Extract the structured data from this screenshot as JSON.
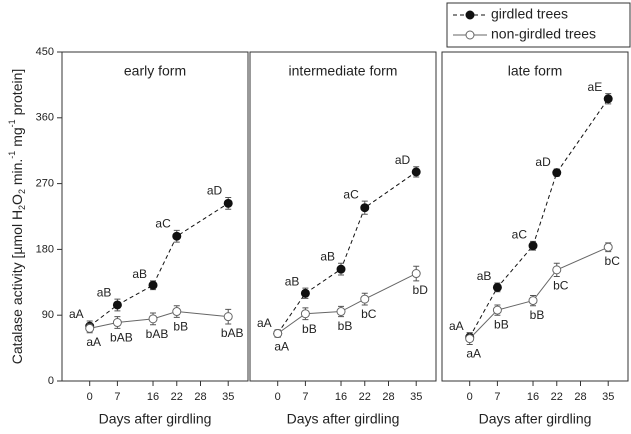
{
  "chart_data": [
    {
      "type": "line",
      "title": "early form",
      "xlabel": "Days after girdling",
      "ylabel": [
        "Catalase activity [µmol H",
        "2",
        "O",
        "2",
        " min.",
        "-1",
        " mg",
        "-1",
        " protein]"
      ],
      "x": [
        0,
        7,
        16,
        22,
        35
      ],
      "xlim": [
        -7,
        40
      ],
      "xticks": [
        0,
        7,
        16,
        22,
        28,
        35
      ],
      "ylim": [
        0,
        450
      ],
      "yticks": [
        0,
        90,
        180,
        270,
        360,
        450
      ],
      "series": [
        {
          "name": "girdled trees",
          "color": "#111111",
          "dashed": true,
          "filled": true,
          "values": [
            75,
            104,
            131,
            198,
            243
          ],
          "errors": [
            7,
            8,
            6,
            8,
            8
          ],
          "annotations": [
            "aA",
            "aB",
            "aB",
            "aC",
            "aD"
          ]
        },
        {
          "name": "non-girdled trees",
          "color": "#666666",
          "dashed": false,
          "filled": false,
          "values": [
            72,
            80,
            85,
            95,
            88
          ],
          "errors": [
            6,
            8,
            8,
            8,
            10
          ],
          "annotations": [
            "aA",
            "bAB",
            "bAB",
            "bB",
            "bAB"
          ]
        }
      ]
    },
    {
      "type": "line",
      "title": "intermediate form",
      "xlabel": "Days after girdling",
      "x": [
        0,
        7,
        16,
        22,
        35
      ],
      "xlim": [
        -7,
        40
      ],
      "xticks": [
        0,
        7,
        16,
        22,
        28,
        35
      ],
      "ylim": [
        0,
        450
      ],
      "series": [
        {
          "color": "#111111",
          "dashed": true,
          "filled": true,
          "values": [
            65,
            120,
            153,
            237,
            286
          ],
          "errors": [
            5,
            7,
            8,
            9,
            7
          ],
          "annotations": [
            "aA",
            "aB",
            "aB",
            "aC",
            "aD"
          ]
        },
        {
          "color": "#666666",
          "dashed": false,
          "filled": false,
          "values": [
            65,
            92,
            95,
            112,
            147
          ],
          "errors": [
            5,
            8,
            7,
            8,
            10
          ],
          "annotations": [
            "aA",
            "bB",
            "bB",
            "bC",
            "bD"
          ]
        }
      ]
    },
    {
      "type": "line",
      "title": "late form",
      "xlabel": "Days after girdling",
      "x": [
        0,
        7,
        16,
        22,
        35
      ],
      "xlim": [
        -7,
        40
      ],
      "xticks": [
        0,
        7,
        16,
        22,
        28,
        35
      ],
      "ylim": [
        0,
        450
      ],
      "series": [
        {
          "color": "#111111",
          "dashed": true,
          "filled": true,
          "values": [
            60,
            128,
            185,
            285,
            386
          ],
          "errors": [
            6,
            6,
            6,
            5,
            7
          ],
          "annotations": [
            "aA",
            "aB",
            "aC",
            "aD",
            "aE"
          ]
        },
        {
          "color": "#666666",
          "dashed": false,
          "filled": false,
          "values": [
            58,
            97,
            110,
            152,
            183
          ],
          "errors": [
            8,
            7,
            7,
            9,
            6
          ],
          "annotations": [
            "aA",
            "bB",
            "bB",
            "bC",
            "bC"
          ]
        }
      ]
    }
  ]
}
